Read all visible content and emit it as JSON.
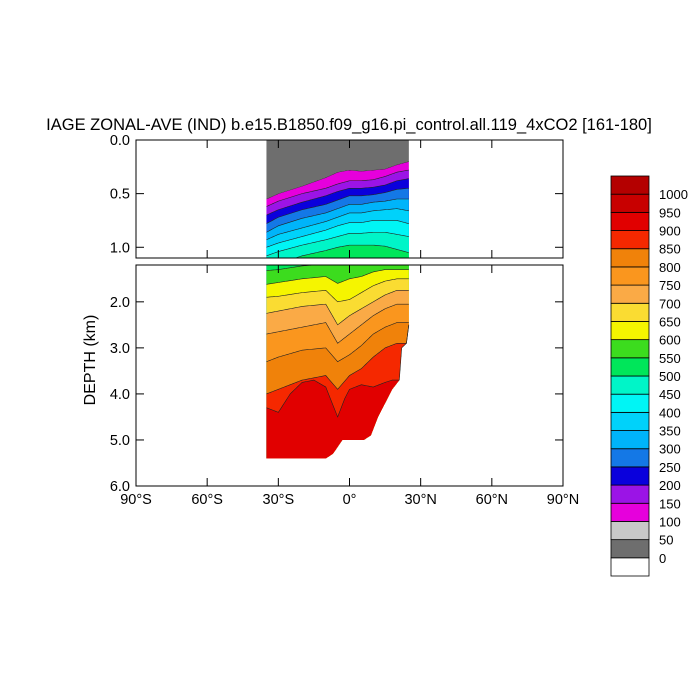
{
  "chart_data": {
    "type": "heatmap",
    "title": "IAGE ZONAL-AVE (IND) b.e15.B1850.f09_g16.pi_control.all.119_4xCO2 [161-180]",
    "ylabel": "DEPTH (km)",
    "xlabel": "",
    "xlim": [
      -90,
      90
    ],
    "x_ticks": [
      -90,
      -60,
      -30,
      0,
      30,
      60,
      90
    ],
    "x_tick_labels": [
      "90°S",
      "60°S",
      "30°S",
      "0°",
      "30°N",
      "60°N",
      "90°N"
    ],
    "upper_panel": {
      "ylim": [
        0.0,
        1.1
      ],
      "y_ticks": [
        0.0,
        0.5,
        1.0
      ],
      "y_tick_labels": [
        "0.0",
        "0.5",
        "1.0"
      ]
    },
    "lower_panel": {
      "ylim": [
        1.2,
        6.0
      ],
      "y_ticks": [
        2,
        3,
        4,
        5,
        6
      ],
      "y_tick_labels": [
        "2.0",
        "3.0",
        "4.0",
        "5.0",
        "6.0"
      ]
    },
    "colorbar": {
      "levels": [
        0,
        50,
        100,
        150,
        200,
        250,
        300,
        350,
        400,
        450,
        500,
        550,
        600,
        650,
        700,
        750,
        800,
        850,
        900,
        950,
        1000
      ],
      "labels": [
        "0",
        "50",
        "100",
        "150",
        "200",
        "250",
        "300",
        "350",
        "400",
        "450",
        "500",
        "550",
        "600",
        "650",
        "700",
        "750",
        "800",
        "850",
        "900",
        "950",
        "1000"
      ],
      "colors": [
        "#ffffff",
        "#6e6e6e",
        "#c8c8c8",
        "#e600dc",
        "#9b14e6",
        "#0a00dc",
        "#1478e6",
        "#00b4fa",
        "#00d2fa",
        "#00f5f5",
        "#00f5c8",
        "#00e65a",
        "#3cdc1e",
        "#f5f500",
        "#fadc32",
        "#faaa46",
        "#fa961e",
        "#f0820a",
        "#f52800",
        "#e10000",
        "#c80000",
        "#b40000"
      ]
    },
    "basin_extent_lat": [
      -35,
      25
    ],
    "bottom_depth_km": [
      [
        -35,
        5.4
      ],
      [
        -30,
        5.4
      ],
      [
        -25,
        5.4
      ],
      [
        -20,
        5.4
      ],
      [
        -15,
        5.4
      ],
      [
        -10,
        5.4
      ],
      [
        -7,
        5.3
      ],
      [
        -3,
        5.0
      ],
      [
        0,
        5.0
      ],
      [
        3,
        5.0
      ],
      [
        6,
        5.0
      ],
      [
        9,
        4.9
      ],
      [
        12,
        4.5
      ],
      [
        15,
        4.2
      ],
      [
        18,
        3.9
      ],
      [
        21,
        3.7
      ],
      [
        22,
        3.0
      ],
      [
        24,
        2.9
      ],
      [
        25,
        2.5
      ]
    ],
    "surface_top_km": [
      [
        -35,
        0.0
      ],
      [
        25,
        0.0
      ]
    ],
    "contour_depths_km": {
      "50": [
        [
          -35,
          0.55
        ],
        [
          -30,
          0.5
        ],
        [
          -20,
          0.43
        ],
        [
          -10,
          0.35
        ],
        [
          -5,
          0.3
        ],
        [
          0,
          0.28
        ],
        [
          5,
          0.29
        ],
        [
          10,
          0.28
        ],
        [
          15,
          0.27
        ],
        [
          20,
          0.23
        ],
        [
          25,
          0.2
        ]
      ],
      "100": [
        [
          -35,
          0.62
        ],
        [
          -30,
          0.57
        ],
        [
          -20,
          0.5
        ],
        [
          -10,
          0.45
        ],
        [
          -5,
          0.41
        ],
        [
          0,
          0.38
        ],
        [
          5,
          0.38
        ],
        [
          10,
          0.37
        ],
        [
          15,
          0.34
        ],
        [
          20,
          0.3
        ],
        [
          25,
          0.28
        ]
      ],
      "150": [
        [
          -35,
          0.7
        ],
        [
          -30,
          0.65
        ],
        [
          -20,
          0.58
        ],
        [
          -10,
          0.52
        ],
        [
          -5,
          0.48
        ],
        [
          0,
          0.45
        ],
        [
          5,
          0.45
        ],
        [
          10,
          0.44
        ],
        [
          15,
          0.42
        ],
        [
          20,
          0.38
        ],
        [
          25,
          0.36
        ]
      ],
      "200": [
        [
          -35,
          0.78
        ],
        [
          -30,
          0.72
        ],
        [
          -20,
          0.65
        ],
        [
          -10,
          0.6
        ],
        [
          -5,
          0.56
        ],
        [
          0,
          0.52
        ],
        [
          5,
          0.52
        ],
        [
          10,
          0.51
        ],
        [
          15,
          0.49
        ],
        [
          20,
          0.46
        ],
        [
          25,
          0.45
        ]
      ],
      "250": [
        [
          -35,
          0.86
        ],
        [
          -30,
          0.8
        ],
        [
          -20,
          0.73
        ],
        [
          -10,
          0.68
        ],
        [
          -5,
          0.64
        ],
        [
          0,
          0.6
        ],
        [
          5,
          0.6
        ],
        [
          10,
          0.58
        ],
        [
          15,
          0.57
        ],
        [
          20,
          0.55
        ],
        [
          25,
          0.55
        ]
      ],
      "300": [
        [
          -35,
          0.93
        ],
        [
          -30,
          0.88
        ],
        [
          -20,
          0.82
        ],
        [
          -10,
          0.76
        ],
        [
          -5,
          0.72
        ],
        [
          0,
          0.68
        ],
        [
          5,
          0.68
        ],
        [
          10,
          0.66
        ],
        [
          15,
          0.65
        ],
        [
          20,
          0.64
        ],
        [
          25,
          0.66
        ]
      ],
      "350": [
        [
          -35,
          1.0
        ],
        [
          -30,
          0.96
        ],
        [
          -20,
          0.9
        ],
        [
          -10,
          0.84
        ],
        [
          -5,
          0.8
        ],
        [
          0,
          0.77
        ],
        [
          5,
          0.77
        ],
        [
          10,
          0.75
        ],
        [
          15,
          0.75
        ],
        [
          20,
          0.75
        ],
        [
          25,
          0.78
        ]
      ],
      "400": [
        [
          -35,
          1.08
        ],
        [
          -30,
          1.04
        ],
        [
          -20,
          0.98
        ],
        [
          -10,
          0.93
        ],
        [
          -5,
          0.9
        ],
        [
          0,
          0.87
        ],
        [
          5,
          0.87
        ],
        [
          10,
          0.86
        ],
        [
          15,
          0.86
        ],
        [
          20,
          0.88
        ],
        [
          25,
          0.9
        ]
      ],
      "450": [
        [
          -35,
          1.2
        ],
        [
          -30,
          1.15
        ],
        [
          -20,
          1.08
        ],
        [
          -10,
          1.03
        ],
        [
          -5,
          1.0
        ],
        [
          0,
          0.98
        ],
        [
          5,
          0.98
        ],
        [
          10,
          0.98
        ],
        [
          15,
          0.99
        ],
        [
          20,
          1.02
        ],
        [
          25,
          1.05
        ]
      ],
      "500": [
        [
          -35,
          1.32
        ],
        [
          -30,
          1.3
        ],
        [
          -20,
          1.22
        ],
        [
          -10,
          1.18
        ],
        [
          -5,
          1.15
        ],
        [
          0,
          1.2
        ],
        [
          5,
          1.18
        ],
        [
          10,
          1.15
        ],
        [
          15,
          1.18
        ],
        [
          20,
          1.2
        ],
        [
          25,
          1.2
        ]
      ],
      "550": [
        [
          -35,
          1.62
        ],
        [
          -30,
          1.58
        ],
        [
          -20,
          1.5
        ],
        [
          -10,
          1.45
        ],
        [
          -5,
          1.6
        ],
        [
          0,
          1.5
        ],
        [
          5,
          1.45
        ],
        [
          10,
          1.35
        ],
        [
          15,
          1.3
        ],
        [
          20,
          1.3
        ],
        [
          25,
          1.3
        ]
      ],
      "600": [
        [
          -35,
          1.9
        ],
        [
          -30,
          1.88
        ],
        [
          -20,
          1.8
        ],
        [
          -10,
          1.75
        ],
        [
          -5,
          2.0
        ],
        [
          0,
          1.95
        ],
        [
          5,
          1.8
        ],
        [
          10,
          1.65
        ],
        [
          15,
          1.55
        ],
        [
          20,
          1.5
        ],
        [
          25,
          1.5
        ]
      ],
      "650": [
        [
          -35,
          2.25
        ],
        [
          -30,
          2.2
        ],
        [
          -20,
          2.1
        ],
        [
          -10,
          2.05
        ],
        [
          -5,
          2.5
        ],
        [
          0,
          2.3
        ],
        [
          5,
          2.15
        ],
        [
          10,
          2.0
        ],
        [
          15,
          1.85
        ],
        [
          20,
          1.75
        ],
        [
          25,
          1.75
        ]
      ],
      "700": [
        [
          -35,
          2.7
        ],
        [
          -30,
          2.65
        ],
        [
          -20,
          2.55
        ],
        [
          -10,
          2.45
        ],
        [
          -5,
          2.9
        ],
        [
          0,
          2.7
        ],
        [
          5,
          2.5
        ],
        [
          10,
          2.3
        ],
        [
          15,
          2.15
        ],
        [
          20,
          2.05
        ],
        [
          25,
          2.05
        ]
      ],
      "750": [
        [
          -35,
          3.3
        ],
        [
          -30,
          3.2
        ],
        [
          -20,
          3.05
        ],
        [
          -10,
          3.0
        ],
        [
          -5,
          3.3
        ],
        [
          0,
          3.15
        ],
        [
          5,
          2.95
        ],
        [
          10,
          2.7
        ],
        [
          15,
          2.55
        ],
        [
          20,
          2.45
        ],
        [
          25,
          2.45
        ]
      ],
      "800": [
        [
          -35,
          4.0
        ],
        [
          -30,
          3.9
        ],
        [
          -20,
          3.7
        ],
        [
          -10,
          3.6
        ],
        [
          -5,
          3.9
        ],
        [
          0,
          3.6
        ],
        [
          5,
          3.45
        ],
        [
          10,
          3.2
        ],
        [
          15,
          3.0
        ],
        [
          20,
          2.9
        ],
        [
          25,
          2.9
        ]
      ],
      "850": [
        [
          -35,
          4.3
        ],
        [
          -30,
          4.4
        ],
        [
          -25,
          4.0
        ],
        [
          -20,
          3.75
        ],
        [
          -15,
          3.7
        ],
        [
          -10,
          3.85
        ],
        [
          -5,
          4.5
        ],
        [
          -2,
          4.1
        ],
        [
          0,
          3.9
        ],
        [
          5,
          3.8
        ],
        [
          10,
          3.85
        ],
        [
          15,
          3.75
        ],
        [
          18,
          3.7
        ]
      ]
    }
  }
}
